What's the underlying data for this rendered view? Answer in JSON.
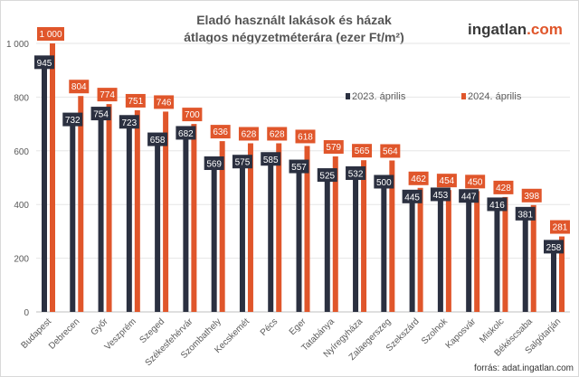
{
  "chart_data": {
    "type": "bar",
    "title_line1": "Eladó használt lakások és házak",
    "title_line2": "átlagos négyzetméterára  (ezer Ft/m²)",
    "categories": [
      "Budapest",
      "Debrecen",
      "Győr",
      "Veszprém",
      "Szeged",
      "Székesfehérvár",
      "Szombathely",
      "Kecskemét",
      "Pécs",
      "Eger",
      "Tatabánya",
      "Nyíregyháza",
      "Zalaegerszeg",
      "Szekszárd",
      "Szolnok",
      "Kaposvár",
      "Miskolc",
      "Békéscsaba",
      "Salgótarján"
    ],
    "series": [
      {
        "name": "2023. április",
        "color": "#2b3040",
        "values": [
          945,
          732,
          754,
          723,
          658,
          682,
          569,
          575,
          585,
          557,
          525,
          532,
          500,
          445,
          453,
          447,
          416,
          381,
          258
        ],
        "labels": [
          "945",
          "732",
          "754",
          "723",
          "658",
          "682",
          "569",
          "575",
          "585",
          "557",
          "525",
          "532",
          "500",
          "445",
          "453",
          "447",
          "416",
          "381",
          "258"
        ]
      },
      {
        "name": "2024. április",
        "color": "#e0562b",
        "values": [
          1000,
          804,
          774,
          751,
          746,
          700,
          636,
          628,
          628,
          618,
          579,
          565,
          564,
          462,
          454,
          450,
          428,
          398,
          281
        ],
        "labels": [
          "1 000",
          "804",
          "774",
          "751",
          "746",
          "700",
          "636",
          "628",
          "628",
          "618",
          "579",
          "565",
          "564",
          "462",
          "454",
          "450",
          "428",
          "398",
          "281"
        ]
      }
    ],
    "ylim": [
      0,
      1000
    ],
    "yticks": [
      0,
      200,
      400,
      600,
      800,
      1000
    ],
    "ytick_labels": [
      "0",
      "200",
      "400",
      "600",
      "800",
      "1 000"
    ],
    "grid": true,
    "legend_position": "top-right"
  },
  "logo": {
    "part1": "ingatlan",
    "part2": ".com",
    "color2": "#e0562b"
  },
  "source": "forrás: adat.ingatlan.com"
}
